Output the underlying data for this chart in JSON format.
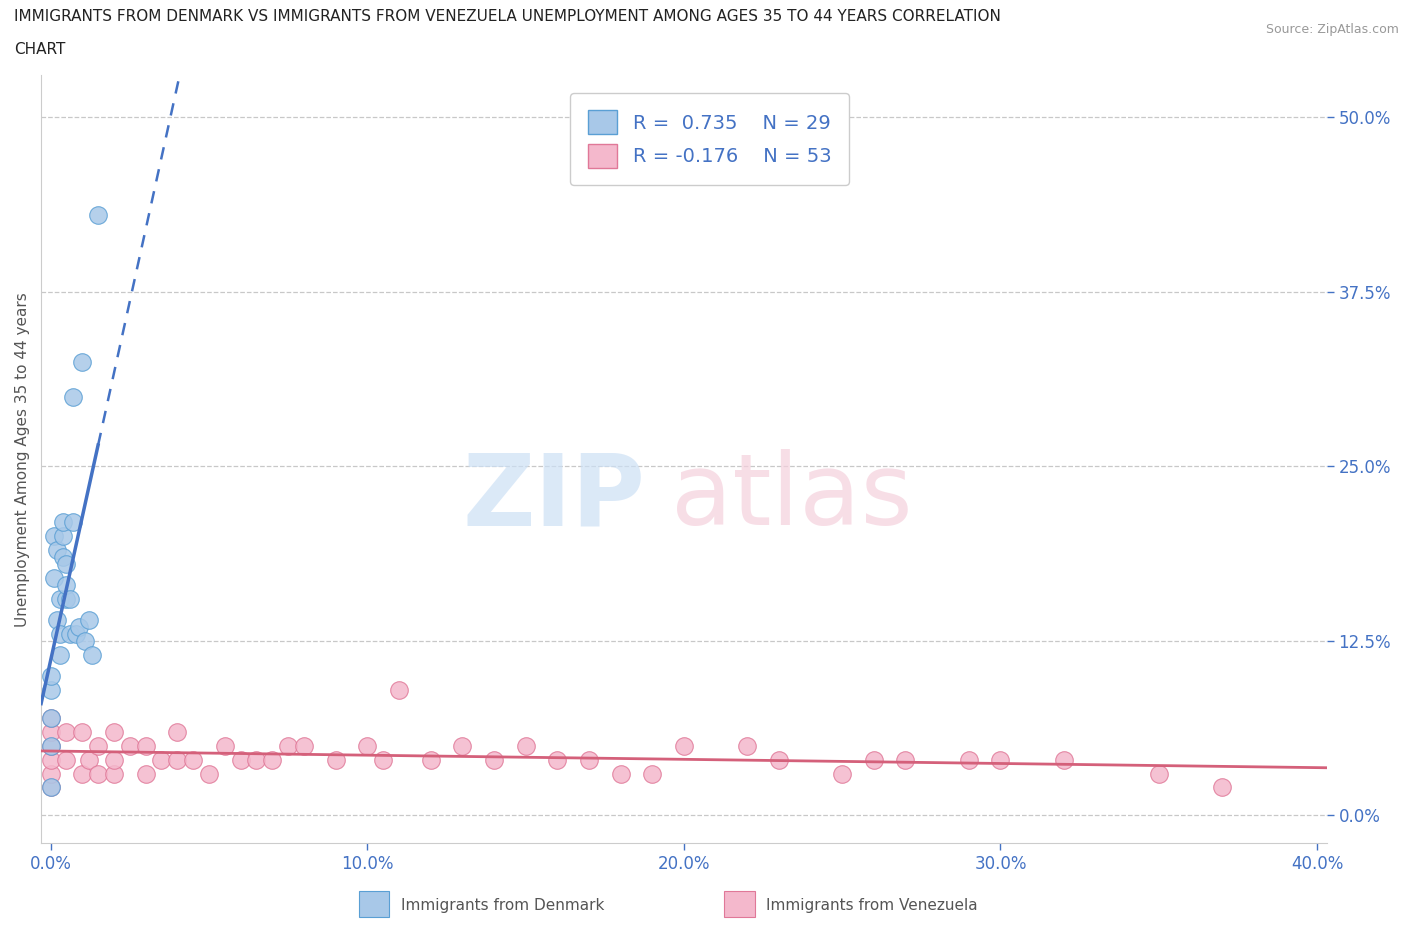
{
  "title_line1": "IMMIGRANTS FROM DENMARK VS IMMIGRANTS FROM VENEZUELA UNEMPLOYMENT AMONG AGES 35 TO 44 YEARS CORRELATION",
  "title_line2": "CHART",
  "source": "Source: ZipAtlas.com",
  "ylabel": "Unemployment Among Ages 35 to 44 years",
  "xlim": [
    -0.003,
    0.403
  ],
  "ylim": [
    -0.02,
    0.53
  ],
  "xticks": [
    0.0,
    0.1,
    0.2,
    0.3,
    0.4
  ],
  "xticklabels": [
    "0.0%",
    "10.0%",
    "20.0%",
    "30.0%",
    "40.0%"
  ],
  "yticks": [
    0.0,
    0.125,
    0.25,
    0.375,
    0.5
  ],
  "yticklabels": [
    "0.0%",
    "12.5%",
    "25.0%",
    "37.5%",
    "50.0%"
  ],
  "denmark_color": "#a8c8e8",
  "denmark_edge": "#5a9fd4",
  "venezuela_color": "#f4b8cc",
  "venezuela_edge": "#e07898",
  "line_denmark_color": "#4472c4",
  "line_venezuela_color": "#d4607a",
  "legend_color": "#4472c4",
  "watermark_zip_color": "#cce0f5",
  "watermark_atlas_color": "#f5d0dc",
  "denmark_x": [
    0.0,
    0.0,
    0.0,
    0.0,
    0.0,
    0.001,
    0.001,
    0.002,
    0.002,
    0.003,
    0.003,
    0.003,
    0.004,
    0.004,
    0.004,
    0.005,
    0.005,
    0.005,
    0.006,
    0.006,
    0.007,
    0.007,
    0.008,
    0.009,
    0.01,
    0.011,
    0.012,
    0.013,
    0.015
  ],
  "denmark_y": [
    0.02,
    0.05,
    0.07,
    0.09,
    0.1,
    0.17,
    0.2,
    0.14,
    0.19,
    0.115,
    0.13,
    0.155,
    0.185,
    0.2,
    0.21,
    0.155,
    0.165,
    0.18,
    0.13,
    0.155,
    0.21,
    0.3,
    0.13,
    0.135,
    0.325,
    0.125,
    0.14,
    0.115,
    0.43
  ],
  "venezuela_x": [
    0.0,
    0.0,
    0.0,
    0.0,
    0.0,
    0.0,
    0.005,
    0.005,
    0.01,
    0.01,
    0.012,
    0.015,
    0.015,
    0.02,
    0.02,
    0.02,
    0.025,
    0.03,
    0.03,
    0.035,
    0.04,
    0.04,
    0.045,
    0.05,
    0.055,
    0.06,
    0.065,
    0.07,
    0.075,
    0.08,
    0.09,
    0.1,
    0.105,
    0.11,
    0.12,
    0.13,
    0.14,
    0.15,
    0.16,
    0.17,
    0.18,
    0.19,
    0.2,
    0.22,
    0.23,
    0.25,
    0.26,
    0.27,
    0.29,
    0.3,
    0.32,
    0.35,
    0.37
  ],
  "venezuela_y": [
    0.02,
    0.03,
    0.04,
    0.05,
    0.06,
    0.07,
    0.04,
    0.06,
    0.03,
    0.06,
    0.04,
    0.03,
    0.05,
    0.03,
    0.04,
    0.06,
    0.05,
    0.03,
    0.05,
    0.04,
    0.04,
    0.06,
    0.04,
    0.03,
    0.05,
    0.04,
    0.04,
    0.04,
    0.05,
    0.05,
    0.04,
    0.05,
    0.04,
    0.09,
    0.04,
    0.05,
    0.04,
    0.05,
    0.04,
    0.04,
    0.03,
    0.03,
    0.05,
    0.05,
    0.04,
    0.03,
    0.04,
    0.04,
    0.04,
    0.04,
    0.04,
    0.03,
    0.02
  ],
  "background_color": "#ffffff",
  "grid_color": "#c8c8c8",
  "tick_color": "#4472c4",
  "spine_color": "#cccccc"
}
